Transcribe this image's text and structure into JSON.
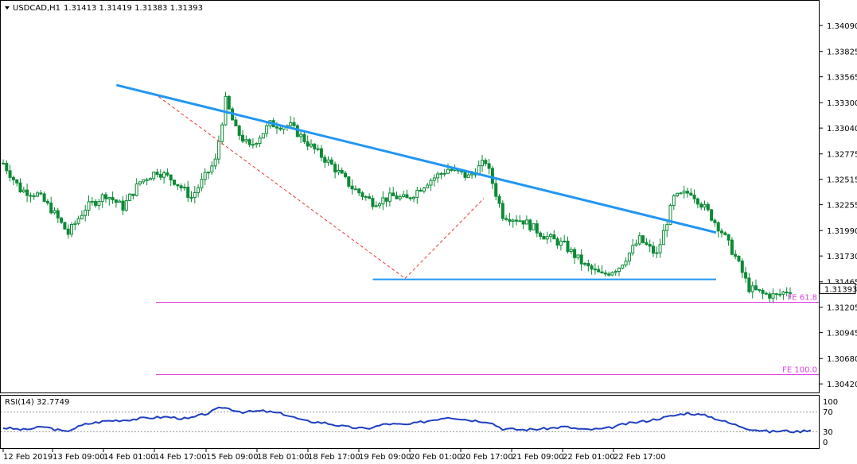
{
  "header": {
    "title": "USDCAD,H1",
    "ohlc": "1.31413 1.31419 1.31383 1.31393"
  },
  "rsi_panel": {
    "label": "RSI(14) 32.7749",
    "levels": [
      "100",
      "70",
      "30",
      "0"
    ]
  },
  "colors": {
    "candle": "#0c8a35",
    "trend": "#2196f3",
    "fib": "#e040e0",
    "dashed": "#e53935",
    "rsi": "#1f3fc0"
  },
  "chart_data": {
    "type": "candlestick",
    "price_axis_ticks": [
      "1.34090",
      "1.33825",
      "1.33565",
      "1.33300",
      "1.33040",
      "1.32775",
      "1.32515",
      "1.32255",
      "1.31990",
      "1.31730",
      "1.31465",
      "1.31205",
      "1.30945",
      "1.30680",
      "1.30420"
    ],
    "price_axis_values": [
      1.3409,
      1.33825,
      1.33565,
      1.333,
      1.3304,
      1.32775,
      1.32515,
      1.32255,
      1.3199,
      1.3173,
      1.31465,
      1.31205,
      1.30945,
      1.3068,
      1.3042
    ],
    "ylim": [
      1.3034,
      1.34335
    ],
    "current_price": "1.31393",
    "current_price_value": 1.31393,
    "time_axis_labels": [
      "12 Feb 2019",
      "13 Feb 09:00",
      "14 Feb 01:00",
      "14 Feb 17:00",
      "15 Feb 09:00",
      "18 Feb 01:00",
      "18 Feb 17:00",
      "19 Feb 09:00",
      "20 Feb 01:00",
      "20 Feb 17:00",
      "21 Feb 09:00",
      "22 Feb 01:00",
      "22 Feb 17:00"
    ],
    "bar_count": 206,
    "close_anchors": [
      [
        0,
        1.3268
      ],
      [
        5,
        1.3241
      ],
      [
        10,
        1.3236
      ],
      [
        14,
        1.3221
      ],
      [
        19,
        1.3196
      ],
      [
        24,
        1.3222
      ],
      [
        30,
        1.3236
      ],
      [
        35,
        1.3223
      ],
      [
        40,
        1.3249
      ],
      [
        45,
        1.326
      ],
      [
        50,
        1.325
      ],
      [
        55,
        1.3233
      ],
      [
        62,
        1.327
      ],
      [
        65,
        1.3332
      ],
      [
        68,
        1.3302
      ],
      [
        72,
        1.3284
      ],
      [
        78,
        1.3308
      ],
      [
        84,
        1.3306
      ],
      [
        90,
        1.3285
      ],
      [
        96,
        1.3266
      ],
      [
        102,
        1.3243
      ],
      [
        108,
        1.3228
      ],
      [
        114,
        1.3234
      ],
      [
        118,
        1.3231
      ],
      [
        124,
        1.3249
      ],
      [
        130,
        1.3262
      ],
      [
        136,
        1.3254
      ],
      [
        141,
        1.327
      ],
      [
        146,
        1.3215
      ],
      [
        152,
        1.3209
      ],
      [
        158,
        1.3194
      ],
      [
        164,
        1.3184
      ],
      [
        170,
        1.3163
      ],
      [
        175,
        1.3153
      ],
      [
        180,
        1.3162
      ],
      [
        186,
        1.319
      ],
      [
        191,
        1.3174
      ],
      [
        196,
        1.3232
      ],
      [
        201,
        1.3239
      ],
      [
        206,
        1.3218
      ],
      [
        210,
        1.3198
      ],
      [
        214,
        1.3172
      ],
      [
        218,
        1.314
      ],
      [
        222,
        1.3134
      ],
      [
        226,
        1.3132
      ],
      [
        230,
        1.3139
      ]
    ],
    "trendline_descending": {
      "from": [
        1,
        1.3348
      ],
      "to": [
        210,
        1.3197
      ]
    },
    "horizontal_support": {
      "from": [
        108,
        1.3149
      ],
      "to": [
        210,
        1.3149
      ]
    },
    "dashed_channel": [
      [
        65,
        1.3336
      ],
      [
        137,
        1.315
      ],
      [
        160,
        1.3232
      ]
    ],
    "fib_levels": [
      {
        "label": "FE 61.8",
        "value": 1.31255
      },
      {
        "label": "FE 100.0",
        "value": 1.30515
      }
    ],
    "rsi": {
      "value": "32.7749",
      "ylim": [
        0,
        100
      ],
      "levels": [
        70,
        30
      ],
      "anchors": [
        [
          0,
          38
        ],
        [
          6,
          34
        ],
        [
          12,
          40
        ],
        [
          18,
          30
        ],
        [
          24,
          45
        ],
        [
          30,
          52
        ],
        [
          36,
          54
        ],
        [
          42,
          58
        ],
        [
          48,
          60
        ],
        [
          54,
          56
        ],
        [
          60,
          68
        ],
        [
          64,
          80
        ],
        [
          70,
          70
        ],
        [
          76,
          72
        ],
        [
          82,
          66
        ],
        [
          88,
          52
        ],
        [
          94,
          48
        ],
        [
          100,
          40
        ],
        [
          106,
          36
        ],
        [
          112,
          46
        ],
        [
          118,
          44
        ],
        [
          124,
          52
        ],
        [
          130,
          60
        ],
        [
          136,
          54
        ],
        [
          142,
          50
        ],
        [
          146,
          36
        ],
        [
          152,
          34
        ],
        [
          158,
          36
        ],
        [
          164,
          40
        ],
        [
          170,
          34
        ],
        [
          176,
          36
        ],
        [
          182,
          46
        ],
        [
          188,
          52
        ],
        [
          194,
          60
        ],
        [
          200,
          68
        ],
        [
          206,
          62
        ],
        [
          212,
          48
        ],
        [
          218,
          36
        ],
        [
          224,
          30
        ],
        [
          228,
          32
        ],
        [
          232,
          30
        ],
        [
          236,
          34
        ]
      ]
    }
  }
}
